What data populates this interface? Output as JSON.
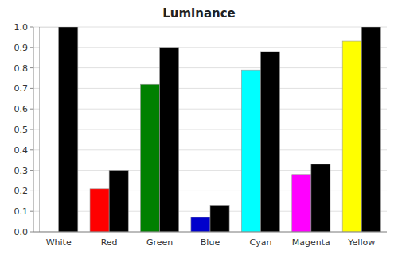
{
  "chart_data": {
    "type": "bar",
    "title": "Luminance",
    "categories": [
      "White",
      "Red",
      "Green",
      "Blue",
      "Cyan",
      "Magenta",
      "Yellow"
    ],
    "series": [
      {
        "values": [
          1.0,
          0.21,
          0.72,
          0.07,
          0.79,
          0.28,
          0.93
        ],
        "colors": [
          "#ffffff",
          "#ff0000",
          "#008000",
          "#0000cc",
          "#00ffff",
          "#ff00ff",
          "#ffff00"
        ]
      },
      {
        "values": [
          1.0,
          0.3,
          0.9,
          0.13,
          0.88,
          0.33,
          1.0
        ],
        "color": "#000000"
      }
    ],
    "ylim": [
      0.0,
      1.0
    ],
    "yticks": [
      {
        "value": 0.0,
        "label": "0.0"
      },
      0.1,
      0.2,
      0.3,
      0.4,
      0.5,
      0.6,
      0.7,
      0.8,
      0.9,
      {
        "value": 1.0,
        "label": "1.0"
      }
    ],
    "grid": true
  }
}
